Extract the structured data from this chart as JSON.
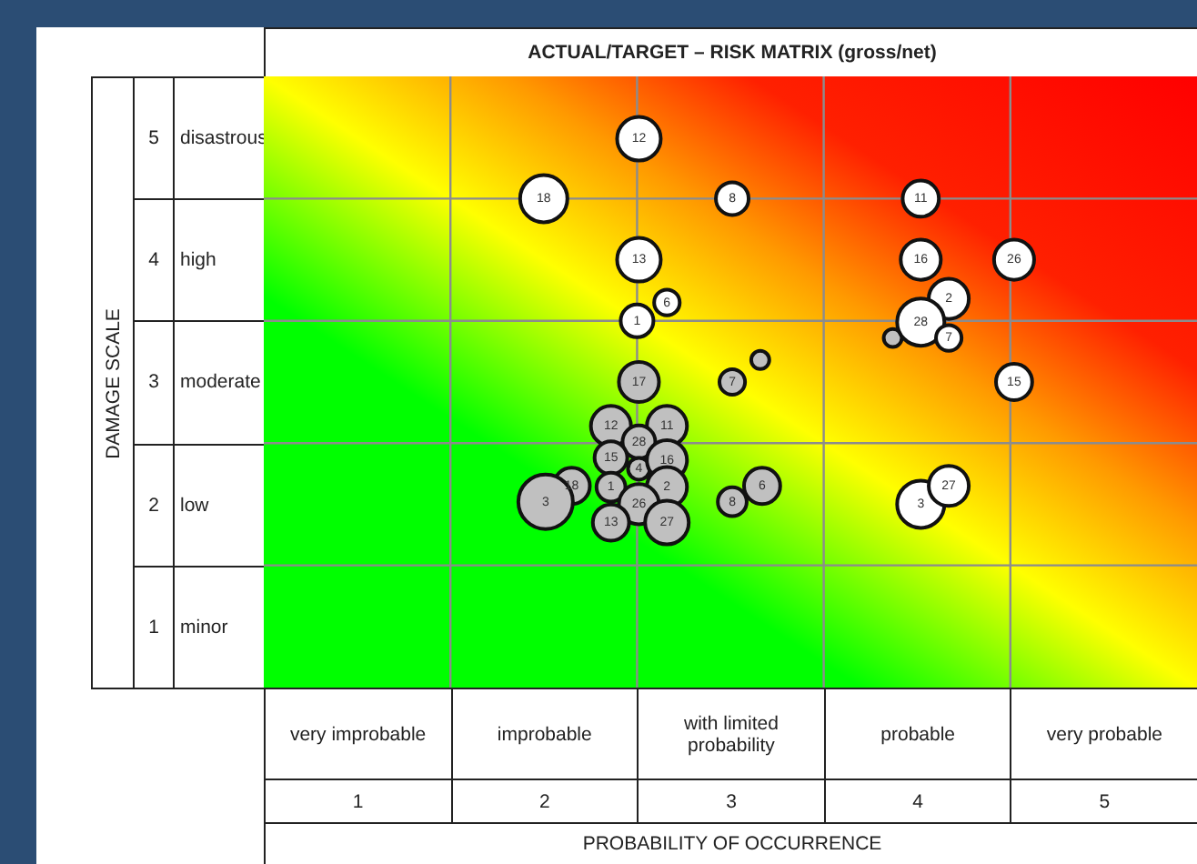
{
  "chart_data": {
    "type": "bubble",
    "title": "ACTUAL/TARGET – RISK MATRIX (gross/net)",
    "xlabel": "PROBABILITY OF OCCURRENCE",
    "ylabel": "DAMAGE SCALE",
    "xlim": [
      0.5,
      5.5
    ],
    "ylim": [
      0.5,
      5.5
    ],
    "xticks": [
      1,
      2,
      3,
      4,
      5
    ],
    "yticks": [
      1,
      2,
      3,
      4,
      5
    ],
    "grid": true,
    "series": [
      {
        "color": "#ffffff",
        "x": [
          2.51,
          2.0,
          3.01,
          2.51,
          2.66,
          2.5,
          4.02,
          4.02,
          4.52,
          4.17,
          4.02,
          4.17,
          4.52,
          4.02,
          4.17
        ],
        "values": [
          4.99,
          4.5,
          4.5,
          4.0,
          3.65,
          3.5,
          4.5,
          4.0,
          4.0,
          3.68,
          3.49,
          3.36,
          3.0,
          2.0,
          2.15
        ],
        "sizes": [
          0.64,
          0.75,
          0.36,
          0.64,
          0.22,
          0.36,
          0.44,
          0.54,
          0.54,
          0.54,
          0.75,
          0.22,
          0.44,
          0.75,
          0.54
        ]
      },
      {
        "color": "#c0c0c0",
        "x": [
          2.51,
          3.01,
          3.16,
          2.36,
          2.66,
          2.51,
          2.36,
          2.51,
          2.66,
          2.15,
          2.36,
          2.66,
          2.01,
          2.51,
          2.36,
          2.66,
          3.01,
          3.17,
          3.87
        ],
        "values": [
          3.0,
          3.0,
          3.18,
          2.64,
          2.64,
          2.51,
          2.38,
          2.29,
          2.36,
          2.15,
          2.14,
          2.14,
          2.02,
          2.0,
          1.85,
          1.85,
          2.02,
          2.15,
          3.36
        ],
        "sizes": [
          0.54,
          0.22,
          0.11,
          0.54,
          0.54,
          0.36,
          0.36,
          0.16,
          0.54,
          0.44,
          0.28,
          0.54,
          1,
          0.54,
          0.44,
          0.64,
          0.28,
          0.44,
          0.11
        ]
      }
    ],
    "annotations": [
      "very improbable",
      "improbable",
      "with limited probability",
      "probable",
      "very probable",
      "disastrous",
      "high",
      "moderate",
      "low",
      "minor",
      {
        "text": "12",
        "x": 2.51,
        "y": 4.99
      },
      {
        "text": "18",
        "x": 2.0,
        "y": 4.5
      },
      {
        "text": "8",
        "x": 3.01,
        "y": 4.5
      },
      {
        "text": "13",
        "x": 2.51,
        "y": 4.0
      },
      {
        "text": "6",
        "x": 2.66,
        "y": 3.65
      },
      {
        "text": "1",
        "x": 2.5,
        "y": 3.5
      },
      {
        "text": "11",
        "x": 4.02,
        "y": 4.5
      },
      {
        "text": "16",
        "x": 4.02,
        "y": 4.0
      },
      {
        "text": "26",
        "x": 4.52,
        "y": 4.0
      },
      {
        "text": "2",
        "x": 4.17,
        "y": 3.68
      },
      {
        "text": "28",
        "x": 4.02,
        "y": 3.49
      },
      {
        "text": "7",
        "x": 4.17,
        "y": 3.36
      },
      {
        "text": "15",
        "x": 4.52,
        "y": 3.0
      },
      {
        "text": "3",
        "x": 4.02,
        "y": 2.0
      },
      {
        "text": "27",
        "x": 4.17,
        "y": 2.15
      },
      {
        "text": "17",
        "x": 2.51,
        "y": 3.0
      },
      {
        "text": "7",
        "x": 3.01,
        "y": 3.0
      },
      {
        "text": "12",
        "x": 2.36,
        "y": 2.64
      },
      {
        "text": "11",
        "x": 2.66,
        "y": 2.64
      },
      {
        "text": "28",
        "x": 2.51,
        "y": 2.51
      },
      {
        "text": "15",
        "x": 2.36,
        "y": 2.38
      },
      {
        "text": "4",
        "x": 2.51,
        "y": 2.29
      },
      {
        "text": "16",
        "x": 2.66,
        "y": 2.36
      },
      {
        "text": "18",
        "x": 2.15,
        "y": 2.15
      },
      {
        "text": "1",
        "x": 2.36,
        "y": 2.14
      },
      {
        "text": "2",
        "x": 2.66,
        "y": 2.14
      },
      {
        "text": "3",
        "x": 2.01,
        "y": 2.02
      },
      {
        "text": "26",
        "x": 2.51,
        "y": 2.0
      },
      {
        "text": "13",
        "x": 2.36,
        "y": 1.85
      },
      {
        "text": "27",
        "x": 2.66,
        "y": 1.85
      },
      {
        "text": "8",
        "x": 3.01,
        "y": 2.02
      },
      {
        "text": "6",
        "x": 3.17,
        "y": 2.15
      }
    ]
  }
}
